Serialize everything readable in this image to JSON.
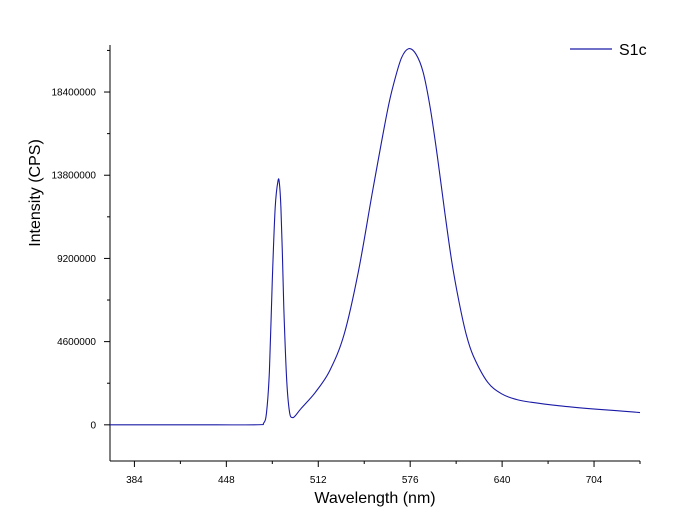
{
  "chart_data": {
    "type": "line",
    "title": "",
    "xlabel": "Wavelength (nm)",
    "ylabel": "Intensity (CPS)",
    "xlim": [
      367,
      736
    ],
    "ylim": [
      -2000000,
      21000000
    ],
    "x_ticks": [
      384,
      448,
      512,
      576,
      640,
      704
    ],
    "y_ticks": [
      0,
      4600000,
      9200000,
      13800000,
      18400000
    ],
    "x_tick_labels": [
      "384",
      "448",
      "512",
      "576",
      "640",
      "704"
    ],
    "y_tick_labels": [
      "0",
      "4600000",
      "9200000",
      "13800000",
      "18400000"
    ],
    "grid": false,
    "legend_position": "top-right",
    "series": [
      {
        "name": "S1c",
        "color": "#1a1aa6",
        "x": [
          367,
          400,
          440,
          470,
          474,
          476,
          478,
          480,
          482,
          484,
          485,
          486,
          487,
          488,
          490,
          492,
          494,
          496,
          500,
          510,
          520,
          530,
          540,
          550,
          560,
          565,
          570,
          575,
          580,
          585,
          590,
          595,
          600,
          605,
          610,
          615,
          620,
          630,
          640,
          650,
          660,
          680,
          700,
          720,
          736
        ],
        "values": [
          0,
          0,
          0,
          5000,
          100000,
          700000,
          3000000,
          8000000,
          12000000,
          13500000,
          13300000,
          12000000,
          9500000,
          6500000,
          2500000,
          700000,
          400000,
          500000,
          900000,
          1800000,
          3000000,
          5000000,
          8500000,
          13000000,
          17300000,
          19000000,
          20300000,
          20800000,
          20500000,
          19500000,
          17500000,
          14800000,
          11800000,
          9000000,
          6800000,
          5000000,
          3800000,
          2350000,
          1700000,
          1400000,
          1250000,
          1050000,
          900000,
          780000,
          680000
        ]
      }
    ]
  }
}
